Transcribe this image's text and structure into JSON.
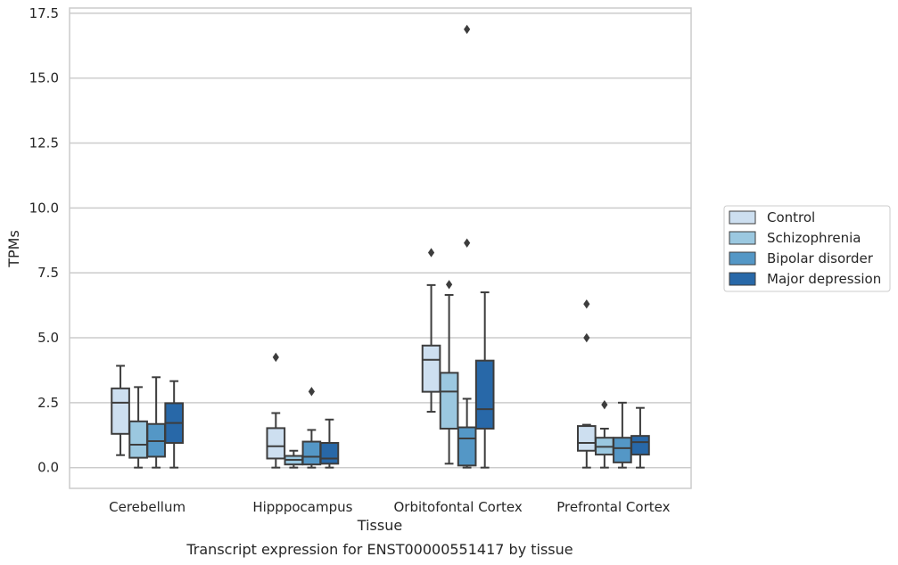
{
  "chart_data": {
    "type": "box",
    "title": "",
    "caption": "Transcript expression for ENST00000551417 by tissue",
    "xlabel": "Tissue",
    "ylabel": "TPMs",
    "ylim": [
      -0.8,
      17.7
    ],
    "yticks": [
      0.0,
      2.5,
      5.0,
      7.5,
      10.0,
      12.5,
      15.0,
      17.5
    ],
    "ytick_labels": [
      "0.0",
      "2.5",
      "5.0",
      "7.5",
      "10.0",
      "12.5",
      "15.0",
      "17.5"
    ],
    "grid": true,
    "legend_position": "right",
    "categories": [
      "Cerebellum",
      "Hipppocampus",
      "Orbitofontal Cortex",
      "Prefrontal Cortex"
    ],
    "series": [
      {
        "name": "Control",
        "color": "#cddff0",
        "boxes": [
          {
            "min": 0.48,
            "q1": 1.3,
            "median": 2.5,
            "q3": 3.05,
            "max": 3.92,
            "outliers": []
          },
          {
            "min": 0.0,
            "q1": 0.35,
            "median": 0.82,
            "q3": 1.52,
            "max": 2.1,
            "outliers": [
              4.25
            ]
          },
          {
            "min": 2.15,
            "q1": 2.92,
            "median": 4.15,
            "q3": 4.7,
            "max": 7.03,
            "outliers": [
              8.28
            ]
          },
          {
            "min": 0.0,
            "q1": 0.65,
            "median": 0.95,
            "q3": 1.6,
            "max": 1.65,
            "outliers": [
              5.0,
              6.3
            ]
          }
        ]
      },
      {
        "name": "Schizophrenia",
        "color": "#9bc8e0",
        "boxes": [
          {
            "min": 0.0,
            "q1": 0.38,
            "median": 0.88,
            "q3": 1.78,
            "max": 3.1,
            "outliers": []
          },
          {
            "min": 0.0,
            "q1": 0.12,
            "median": 0.3,
            "q3": 0.45,
            "max": 0.65,
            "outliers": []
          },
          {
            "min": 0.15,
            "q1": 1.5,
            "median": 2.93,
            "q3": 3.65,
            "max": 6.65,
            "outliers": [
              7.05
            ]
          },
          {
            "min": 0.0,
            "q1": 0.5,
            "median": 0.8,
            "q3": 1.15,
            "max": 1.5,
            "outliers": [
              2.42
            ]
          }
        ]
      },
      {
        "name": "Bipolar disorder",
        "color": "#5497c6",
        "boxes": [
          {
            "min": 0.0,
            "q1": 0.42,
            "median": 1.02,
            "q3": 1.68,
            "max": 3.48,
            "outliers": []
          },
          {
            "min": 0.0,
            "q1": 0.12,
            "median": 0.42,
            "q3": 1.0,
            "max": 1.45,
            "outliers": [
              2.93
            ]
          },
          {
            "min": 0.0,
            "q1": 0.08,
            "median": 1.12,
            "q3": 1.55,
            "max": 2.65,
            "outliers": [
              8.65,
              16.88
            ]
          },
          {
            "min": 0.0,
            "q1": 0.2,
            "median": 0.75,
            "q3": 1.15,
            "max": 2.5,
            "outliers": []
          }
        ]
      },
      {
        "name": "Major depression",
        "color": "#2868a8",
        "boxes": [
          {
            "min": 0.0,
            "q1": 0.95,
            "median": 1.72,
            "q3": 2.48,
            "max": 3.33,
            "outliers": []
          },
          {
            "min": 0.0,
            "q1": 0.15,
            "median": 0.35,
            "q3": 0.95,
            "max": 1.85,
            "outliers": []
          },
          {
            "min": 0.0,
            "q1": 1.5,
            "median": 2.25,
            "q3": 4.12,
            "max": 6.75,
            "outliers": []
          },
          {
            "min": 0.0,
            "q1": 0.5,
            "median": 0.98,
            "q3": 1.22,
            "max": 2.3,
            "outliers": []
          }
        ]
      }
    ]
  }
}
